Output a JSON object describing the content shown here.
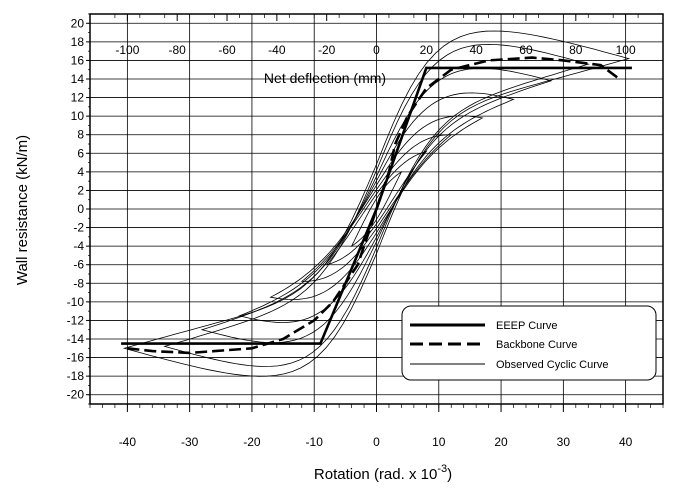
{
  "chart_data": {
    "type": "line",
    "xlabel": "Rotation (rad. x 10",
    "xlabel_superscript": "-3",
    "xlabel_close": ")",
    "ylabel": "Wall resistance (kN/m)",
    "top_axis_label": "Net deflection (mm)",
    "xlim": [
      -46,
      46
    ],
    "ylim": [
      -21,
      21
    ],
    "top_xlim": [
      -115,
      115
    ],
    "x_ticks": [
      -40,
      -30,
      -20,
      -10,
      0,
      10,
      20,
      30,
      40
    ],
    "y_ticks": [
      -20,
      -18,
      -16,
      -14,
      -12,
      -10,
      -8,
      -6,
      -4,
      -2,
      0,
      2,
      4,
      6,
      8,
      10,
      12,
      14,
      16,
      18,
      20
    ],
    "top_ticks": [
      -100,
      -80,
      -60,
      -40,
      -20,
      0,
      20,
      40,
      60,
      80,
      100
    ],
    "grid": true,
    "legend_position": "bottom-right",
    "series": [
      {
        "name": "EEEP Curve",
        "style": "solid-thick",
        "x": [
          -41,
          -9,
          0,
          8,
          41
        ],
        "y": [
          -14.5,
          -14.5,
          0,
          15.2,
          15.2
        ]
      },
      {
        "name": "Backbone Curve",
        "style": "dashed-thick",
        "x": [
          -40,
          -36,
          -30,
          -26,
          -20,
          -15,
          -10,
          -7,
          -5,
          -3,
          -2,
          -1,
          0,
          1,
          2,
          3,
          5,
          8,
          12,
          18,
          25,
          30,
          36,
          39
        ],
        "y": [
          -15.0,
          -15.3,
          -15.5,
          -15.3,
          -15.0,
          -14.0,
          -12.0,
          -10.0,
          -8.0,
          -6.0,
          -4.0,
          -2.0,
          0,
          2.0,
          4.0,
          7.0,
          10.0,
          13.0,
          15.0,
          16.0,
          16.3,
          16.0,
          15.5,
          14.0
        ]
      },
      {
        "name": "Observed Cyclic Curve",
        "style": "solid-thin",
        "loops": [
          {
            "a": 40.5,
            "pos": 16.2,
            "neg": -15.0,
            "w": 3.0
          },
          {
            "a": 34,
            "pos": 15.6,
            "neg": -14.8,
            "w": 2.6
          },
          {
            "a": 28,
            "pos": 13.8,
            "neg": -13.0,
            "w": 2.2
          },
          {
            "a": 22,
            "pos": 11.8,
            "neg": -11.5,
            "w": 1.9
          },
          {
            "a": 17,
            "pos": 9.8,
            "neg": -9.5,
            "w": 1.6
          },
          {
            "a": 12,
            "pos": 8.0,
            "neg": -7.8,
            "w": 1.3
          },
          {
            "a": 8,
            "pos": 6.2,
            "neg": -6.0,
            "w": 1.0
          },
          {
            "a": 4,
            "pos": 4.0,
            "neg": -4.0,
            "w": 0.7
          }
        ]
      }
    ]
  }
}
